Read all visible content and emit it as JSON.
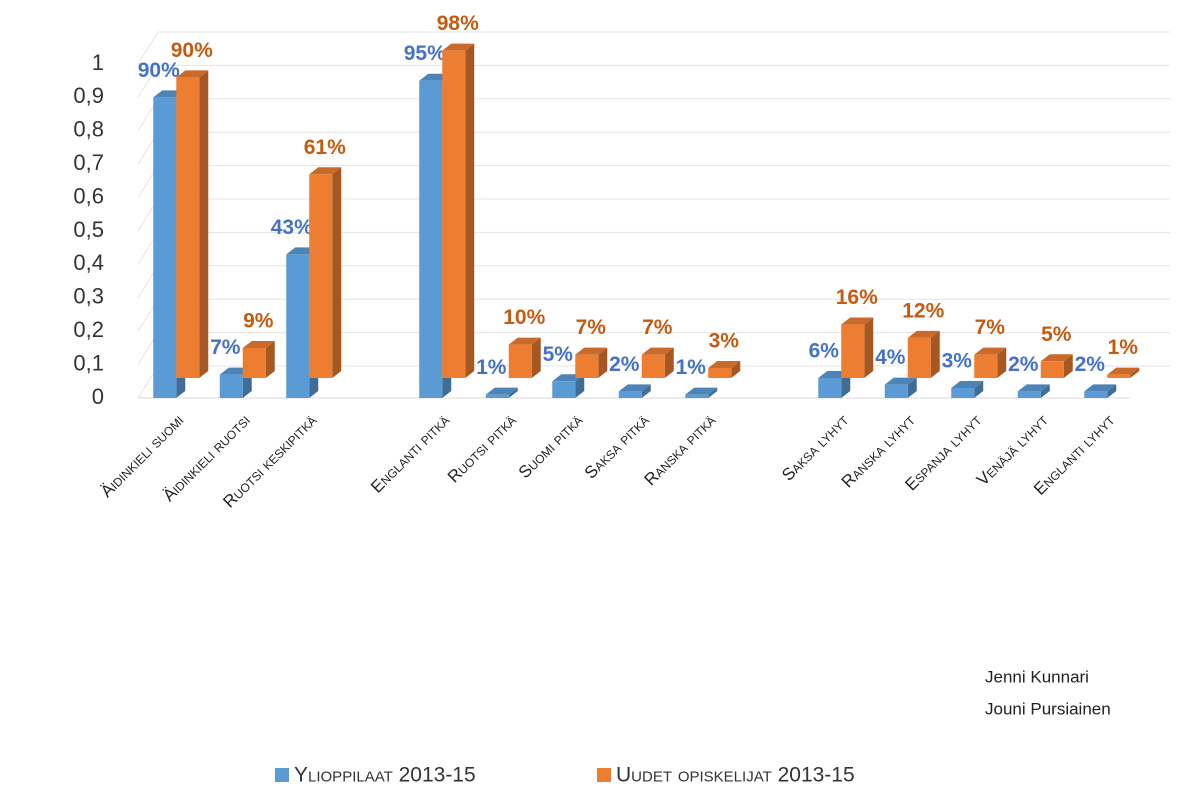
{
  "chart_data": {
    "type": "bar3d",
    "categories": [
      "Äidinkieli suomi",
      "Äidinkieli ruotsi",
      "Ruotsi keskipitkä",
      null,
      "Englanti pitkä",
      "Ruotsi pitkä",
      "Suomi pitkä",
      "Saksa pitkä",
      "Ranska pitkä",
      null,
      "Saksa lyhyt",
      "Ranska lyhyt",
      "Espanja lyhyt",
      "Venäjä lyhyt",
      "Englanti lyhyt"
    ],
    "series": [
      {
        "name": "Ylioppilaat 2013-15",
        "color": "#5b9bd5",
        "label_color": "#4472c4",
        "values": [
          0.9,
          0.07,
          0.43,
          null,
          0.95,
          0.01,
          0.05,
          0.02,
          0.01,
          null,
          0.06,
          0.04,
          0.03,
          0.02,
          0.02
        ],
        "value_labels": [
          "90%",
          "7%",
          "43%",
          null,
          "95%",
          "1%",
          "5%",
          "2%",
          "1%",
          null,
          "6%",
          "4%",
          "3%",
          "2%",
          "2%"
        ]
      },
      {
        "name": "Uudet opiskelijat 2013-15",
        "color": "#ed7d31",
        "label_color": "#c55a11",
        "values": [
          0.9,
          0.09,
          0.61,
          null,
          0.98,
          0.1,
          0.07,
          0.07,
          0.03,
          null,
          0.16,
          0.12,
          0.07,
          0.05,
          0.01
        ],
        "value_labels": [
          "90%",
          "9%",
          "61%",
          null,
          "98%",
          "10%",
          "7%",
          "7%",
          "3%",
          null,
          "16%",
          "12%",
          "7%",
          "5%",
          "1%"
        ]
      }
    ],
    "ylim": [
      0,
      1
    ],
    "yticks": [
      0,
      {
        "value": 0.1,
        "label": "0,1"
      },
      {
        "value": 0.2,
        "label": "0,2"
      },
      {
        "value": 0.3,
        "label": "0,3"
      },
      {
        "value": 0.4,
        "label": "0,4"
      },
      {
        "value": 0.5,
        "label": "0,5"
      },
      {
        "value": 0.6,
        "label": "0,6"
      },
      {
        "value": 0.7,
        "label": "0,7"
      },
      {
        "value": 0.8,
        "label": "0,8"
      },
      {
        "value": 0.9,
        "label": "0,9"
      },
      1
    ],
    "grid": true,
    "legend": "bottom",
    "annotations": [
      "Jenni Kunnari",
      "Jouni Pursiainen"
    ]
  }
}
